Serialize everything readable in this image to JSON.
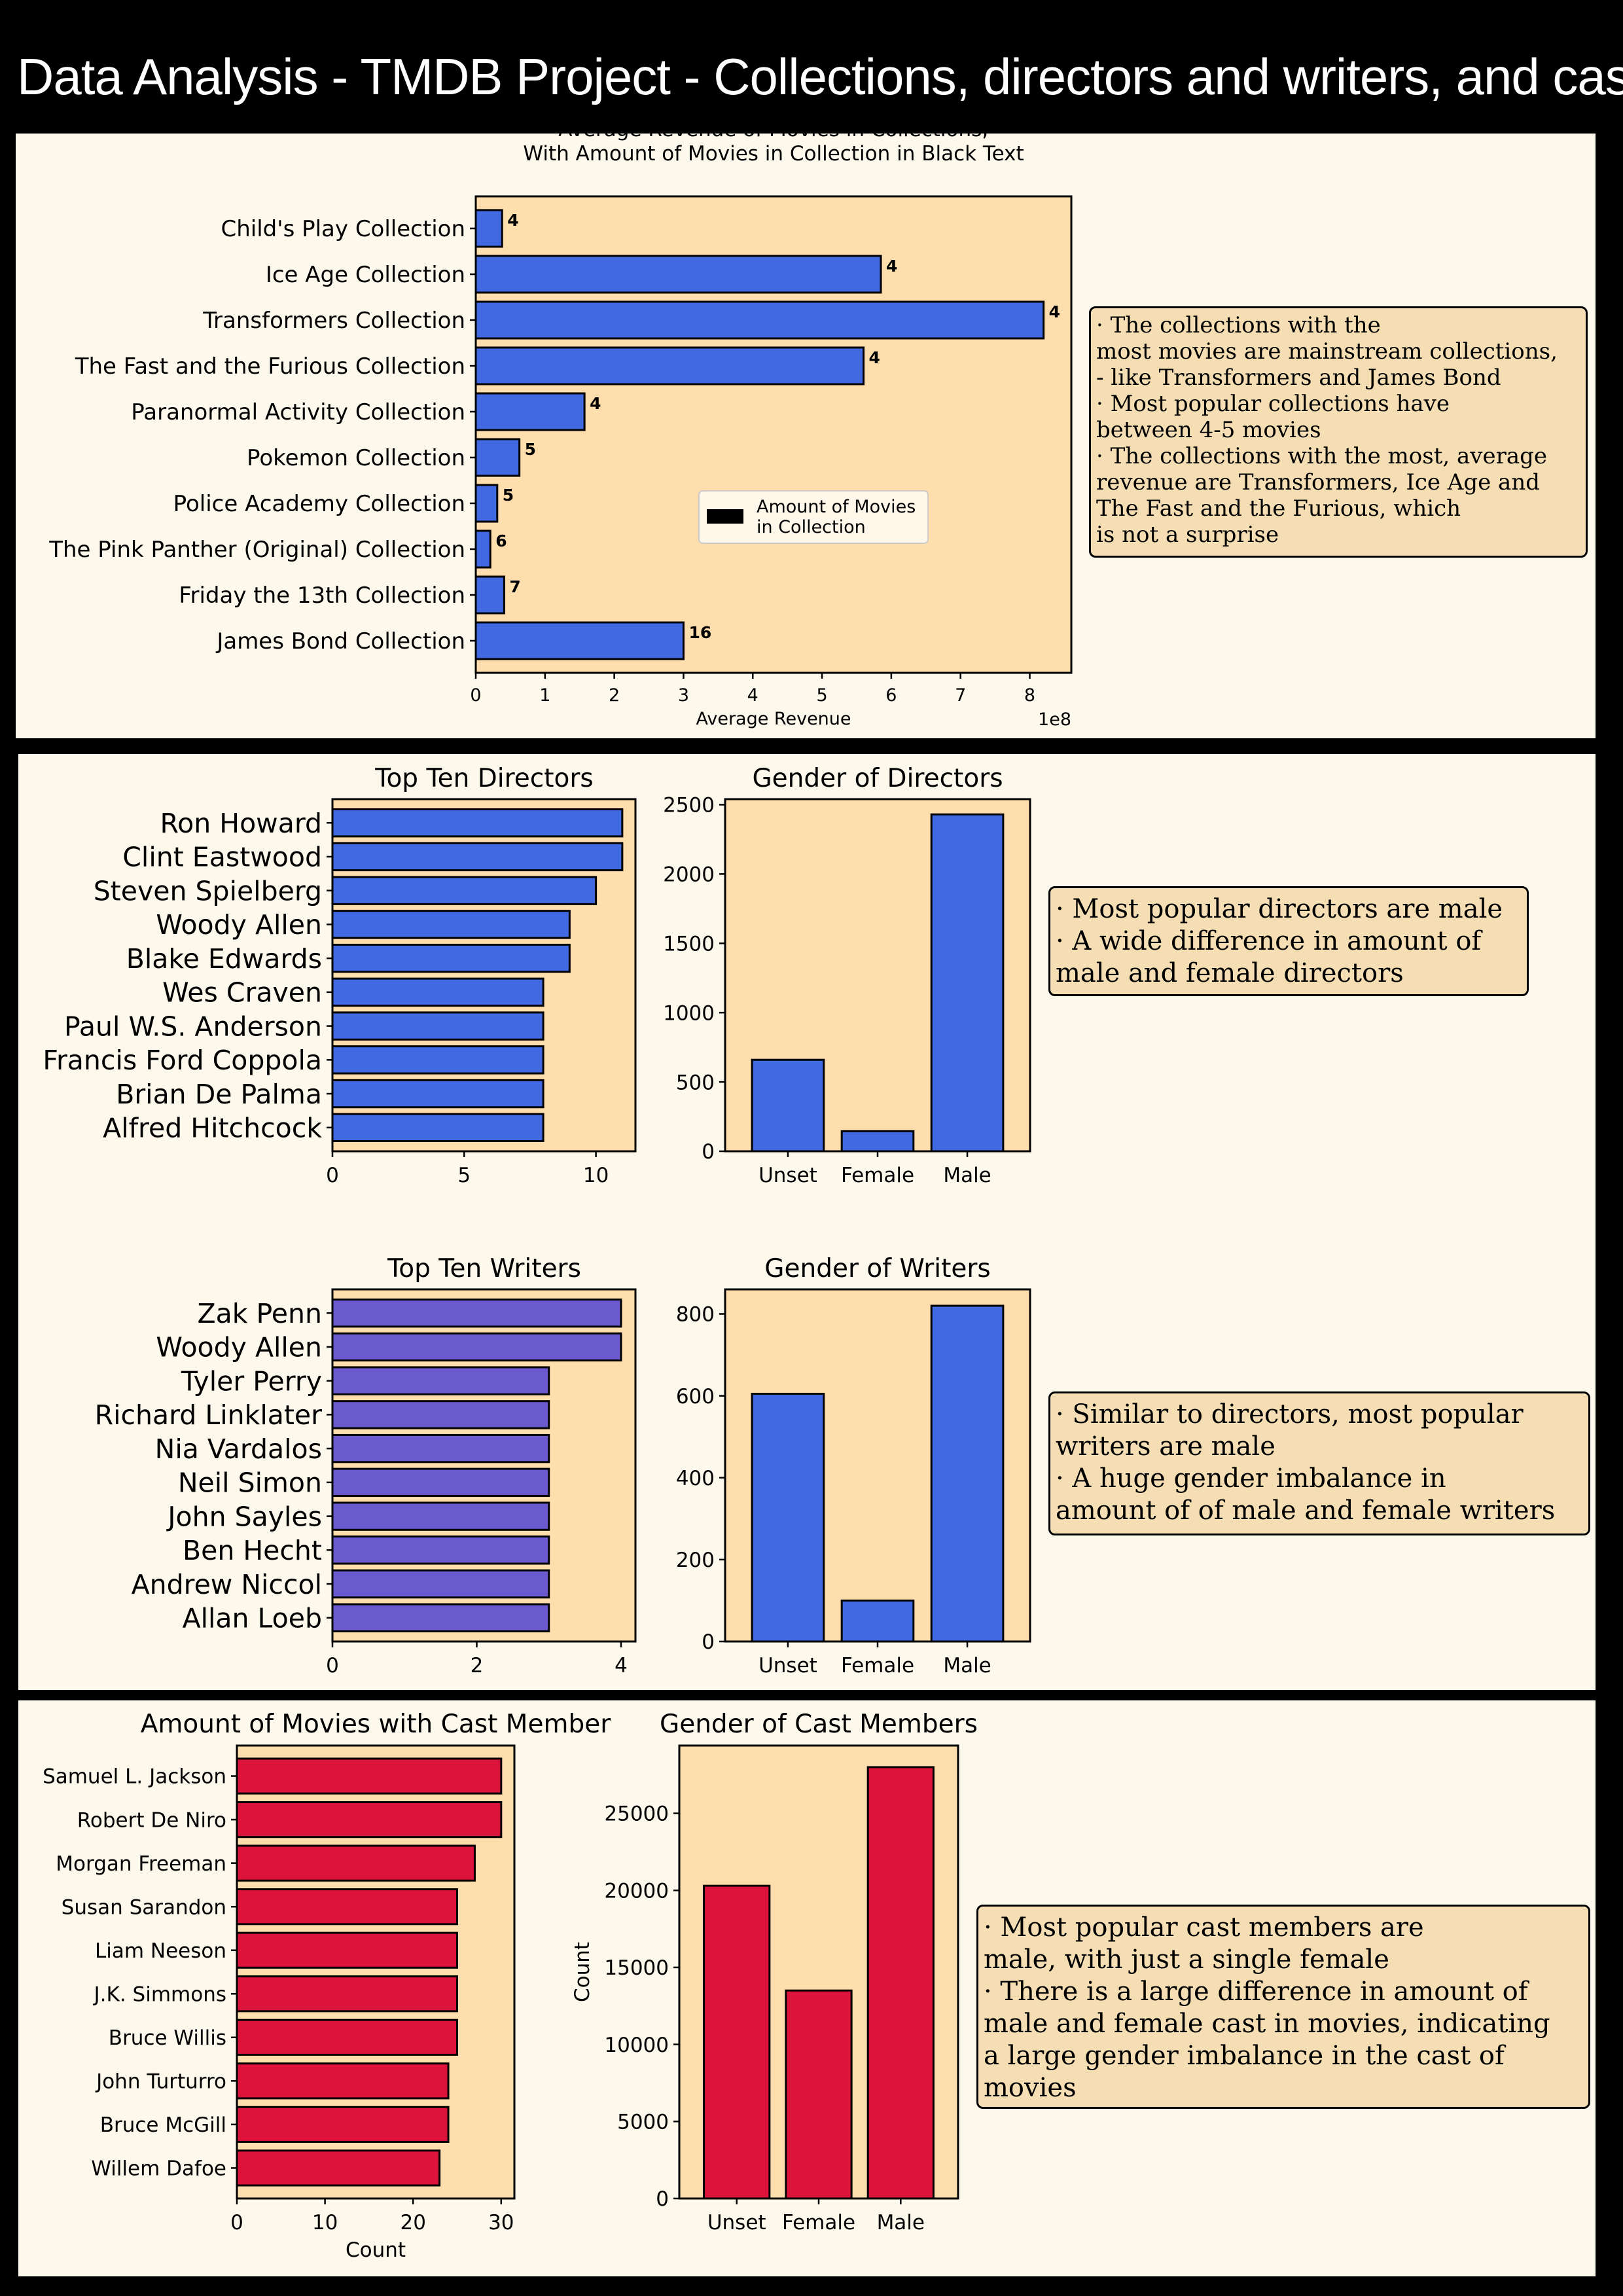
{
  "page": {
    "title": "Data Analysis - TMDB Project - Collections, directors and writers, and cast"
  },
  "colors": {
    "background": "#000000",
    "panel": "#fdf8ec",
    "plot_bg": "#ffdead",
    "note_bg": "#f5deb3",
    "blue": "#4169e1",
    "purple": "#6a5acd",
    "red": "#dc143c"
  },
  "notes": {
    "collections": [
      "· The collections with the",
      "most movies are mainstream collections,",
      "- like Transformers and James Bond",
      "· Most popular collections have",
      "between 4-5 movies",
      "· The collections with the most, average",
      "revenue are Transformers, Ice Age and",
      "The Fast and the Furious, which",
      "is not a surprise"
    ],
    "directors": [
      "· Most popular directors are male",
      "· A wide difference in amount of",
      "male and female directors"
    ],
    "writers": [
      "· Similar to directors, most popular",
      "writers are male",
      "· A huge gender imbalance in",
      " amount of of male and female writers"
    ],
    "cast": [
      "· Most popular cast members are",
      "male, with just a single female",
      "· There is a large difference in amount of",
      "male and female cast in movies, indicating",
      "a large gender imbalance in the cast of",
      "movies"
    ]
  },
  "chart_data": [
    {
      "id": "collections",
      "type": "bar",
      "orientation": "horizontal",
      "title": "Average Revenue of Movies in Collections;\nWith Amount of Movies in Collection in Black Text",
      "xlabel": "Average Revenue",
      "offset_text": "1e8",
      "categories": [
        "Child's Play Collection",
        "Ice Age Collection",
        "Transformers Collection",
        "The Fast and the Furious Collection",
        "Paranormal Activity Collection",
        "Pokemon Collection",
        "Police Academy Collection",
        "The Pink Panther (Original) Collection",
        "Friday the 13th Collection",
        "James Bond Collection"
      ],
      "values": [
        0.38,
        5.85,
        8.2,
        5.6,
        1.57,
        0.63,
        0.31,
        0.21,
        0.41,
        3.0
      ],
      "bar_labels": [
        "4",
        "4",
        "4",
        "4",
        "4",
        "5",
        "5",
        "6",
        "7",
        "16"
      ],
      "xlim": [
        0,
        8.6
      ],
      "xticks": [
        0,
        1,
        2,
        3,
        4,
        5,
        6,
        7,
        8
      ],
      "legend": {
        "label": "Amount of Movies\n in Collection",
        "location": "center-right"
      },
      "color": "#4169e1"
    },
    {
      "id": "directors",
      "type": "bar",
      "orientation": "horizontal",
      "title": "Top Ten Directors",
      "categories": [
        "Ron Howard",
        "Clint Eastwood",
        "Steven Spielberg",
        "Woody Allen",
        "Blake Edwards",
        "Wes Craven",
        "Paul W.S. Anderson",
        "Francis Ford Coppola",
        "Brian De Palma",
        "Alfred Hitchcock"
      ],
      "values": [
        11,
        11,
        10,
        9,
        9,
        8,
        8,
        8,
        8,
        8
      ],
      "xlim": [
        0,
        11.5
      ],
      "xticks": [
        0,
        5,
        10
      ],
      "color": "#4169e1"
    },
    {
      "id": "directors_gender",
      "type": "bar",
      "title": "Gender of Directors",
      "categories": [
        "Unset",
        "Female",
        "Male"
      ],
      "values": [
        660,
        145,
        2430
      ],
      "ylim": [
        0,
        2540
      ],
      "yticks": [
        0,
        500,
        1000,
        1500,
        2000,
        2500
      ],
      "color": "#4169e1"
    },
    {
      "id": "writers",
      "type": "bar",
      "orientation": "horizontal",
      "title": "Top Ten Writers",
      "categories": [
        "Zak Penn",
        "Woody Allen",
        "Tyler Perry",
        "Richard Linklater",
        "Nia Vardalos",
        "Neil Simon",
        "John Sayles",
        "Ben Hecht",
        "Andrew Niccol",
        "Allan Loeb"
      ],
      "values": [
        4,
        4,
        3,
        3,
        3,
        3,
        3,
        3,
        3,
        3
      ],
      "xlim": [
        0,
        4.2
      ],
      "xticks": [
        0,
        2,
        4
      ],
      "color": "#6a5acd"
    },
    {
      "id": "writers_gender",
      "type": "bar",
      "title": "Gender of Writers",
      "categories": [
        "Unset",
        "Female",
        "Male"
      ],
      "values": [
        605,
        100,
        820
      ],
      "ylim": [
        0,
        860
      ],
      "yticks": [
        0,
        200,
        400,
        600,
        800
      ],
      "color": "#4169e1"
    },
    {
      "id": "cast",
      "type": "bar",
      "orientation": "horizontal",
      "title": "Amount of Movies with Cast Member",
      "xlabel": "Count",
      "categories": [
        "Samuel L. Jackson",
        "Robert De Niro",
        "Morgan Freeman",
        "Susan Sarandon",
        "Liam Neeson",
        "J.K. Simmons",
        "Bruce Willis",
        "John Turturro",
        "Bruce McGill",
        "Willem Dafoe"
      ],
      "values": [
        30,
        30,
        27,
        25,
        25,
        25,
        25,
        24,
        24,
        23
      ],
      "xlim": [
        0,
        31.5
      ],
      "xticks": [
        0,
        10,
        20,
        30
      ],
      "color": "#dc143c"
    },
    {
      "id": "cast_gender",
      "type": "bar",
      "title": "Gender of Cast Members",
      "ylabel": "Count",
      "categories": [
        "Unset",
        "Female",
        "Male"
      ],
      "values": [
        20300,
        13500,
        28000
      ],
      "ylim": [
        0,
        29400
      ],
      "yticks": [
        0,
        5000,
        10000,
        15000,
        20000,
        25000
      ],
      "color": "#dc143c"
    }
  ]
}
